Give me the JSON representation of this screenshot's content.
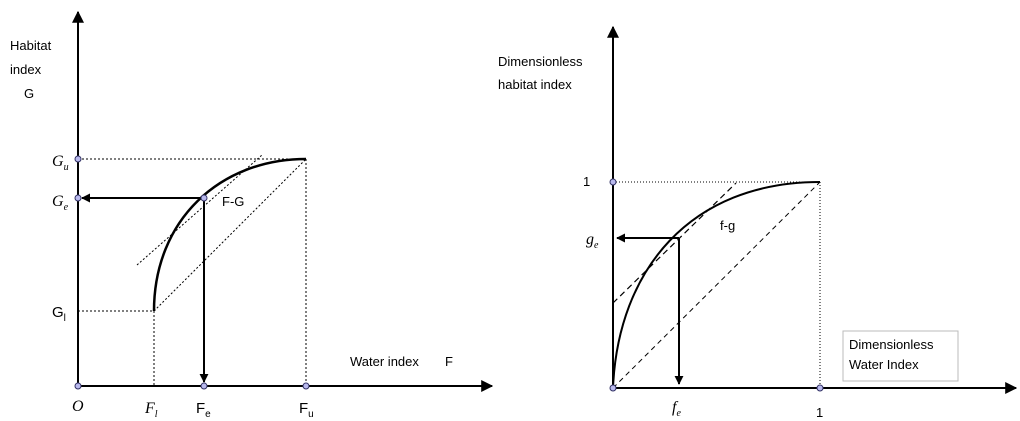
{
  "left_diagram": {
    "y_axis_label_line1": "Habitat",
    "y_axis_label_line2": "index",
    "y_axis_symbol": "G",
    "x_axis_label": "Water index",
    "x_axis_symbol": "F",
    "origin": "O",
    "g_upper": {
      "base": "G",
      "sub": "u"
    },
    "g_equilibrium": {
      "base": "G",
      "sub": "e"
    },
    "g_lower": {
      "base": "G",
      "sub": "l"
    },
    "f_lower": {
      "base": "F",
      "sub": "l"
    },
    "f_equilibrium": {
      "base": "F",
      "sub": "e"
    },
    "f_upper": {
      "base": "F",
      "sub": "u"
    },
    "curve_label": "F-G"
  },
  "right_diagram": {
    "y_axis_label_line1": "Dimensionless",
    "y_axis_label_line2": "habitat index",
    "x_axis_label_line1": "Dimensionless",
    "x_axis_label_line2": "Water Index",
    "y_tick_one": "1",
    "x_tick_one": "1",
    "g_equilibrium": {
      "base": "g",
      "sub": "e"
    },
    "f_equilibrium": {
      "base": "f",
      "sub": "e"
    },
    "curve_label": "f-g"
  },
  "colors": {
    "line": "#000000",
    "point_fill": "#b9b9ee",
    "point_stroke": "#333366"
  }
}
